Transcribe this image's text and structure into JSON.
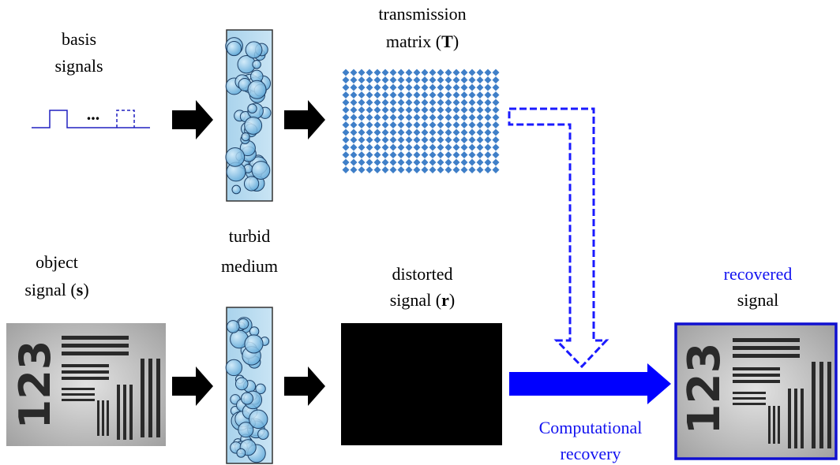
{
  "labels": {
    "basis": [
      "basis",
      "signals"
    ],
    "ellipsis": "...",
    "transmission": {
      "line1": "transmission",
      "line2_before": "matrix (",
      "line2_bold": "T",
      "line2_after": ")"
    },
    "object": {
      "line1": "object",
      "line2_before": "signal (",
      "line2_bold": "s",
      "line2_after": ")"
    },
    "turbid": [
      "turbid",
      "medium"
    ],
    "distorted": {
      "line1": "distorted",
      "line2_before": "signal (",
      "line2_bold": "r",
      "line2_after": ")"
    },
    "recovered": [
      "recovered",
      "signal"
    ],
    "computational": [
      "Computational",
      "recovery"
    ],
    "chart_glyphs": "123"
  }
}
